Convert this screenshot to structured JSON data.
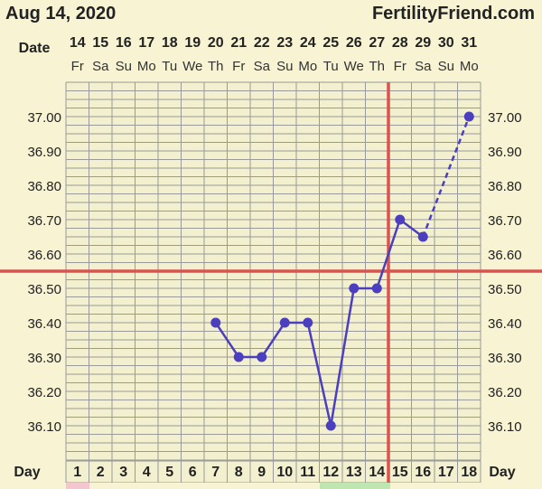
{
  "header": {
    "date": "Aug 14, 2020",
    "site": "FertilityFriend.com"
  },
  "labels": {
    "date_row": "Date",
    "day_row": "Day"
  },
  "colors": {
    "background": "#f7f3d3",
    "grid_background": "#f3f0cf",
    "grid_line": "#9a9a9a",
    "series": "#4b3fbf",
    "coverline": "#d9534f",
    "ovulation_line": "#d9534f"
  },
  "chart_data": {
    "type": "line",
    "dates": [
      "14",
      "15",
      "16",
      "17",
      "18",
      "19",
      "20",
      "21",
      "22",
      "23",
      "24",
      "25",
      "26",
      "27",
      "28",
      "29",
      "30",
      "31"
    ],
    "weekdays": [
      "Fr",
      "Sa",
      "Su",
      "Mo",
      "Tu",
      "We",
      "Th",
      "Fr",
      "Sa",
      "Su",
      "Mo",
      "Tu",
      "We",
      "Th",
      "Fr",
      "Sa",
      "Su",
      "Mo"
    ],
    "days": [
      "1",
      "2",
      "3",
      "4",
      "5",
      "6",
      "7",
      "8",
      "9",
      "10",
      "11",
      "12",
      "13",
      "14",
      "15",
      "16",
      "17",
      "18"
    ],
    "y_ticks": [
      "37.00",
      "36.90",
      "36.80",
      "36.70",
      "36.60",
      "36.50",
      "36.40",
      "36.30",
      "36.20",
      "36.10"
    ],
    "ylim": [
      36.0,
      37.1
    ],
    "series": [
      {
        "points": [
          {
            "day": 7,
            "temp": 36.4
          },
          {
            "day": 8,
            "temp": 36.3
          },
          {
            "day": 9,
            "temp": 36.3
          },
          {
            "day": 10,
            "temp": 36.4
          },
          {
            "day": 11,
            "temp": 36.4
          },
          {
            "day": 12,
            "temp": 36.1
          },
          {
            "day": 13,
            "temp": 36.5
          },
          {
            "day": 14,
            "temp": 36.5
          },
          {
            "day": 15,
            "temp": 36.7
          },
          {
            "day": 16,
            "temp": 36.65
          },
          {
            "day": 18,
            "temp": 37.0
          }
        ],
        "solid_until_day": 16
      }
    ],
    "coverline": 36.55,
    "ovulation_day": 14
  }
}
